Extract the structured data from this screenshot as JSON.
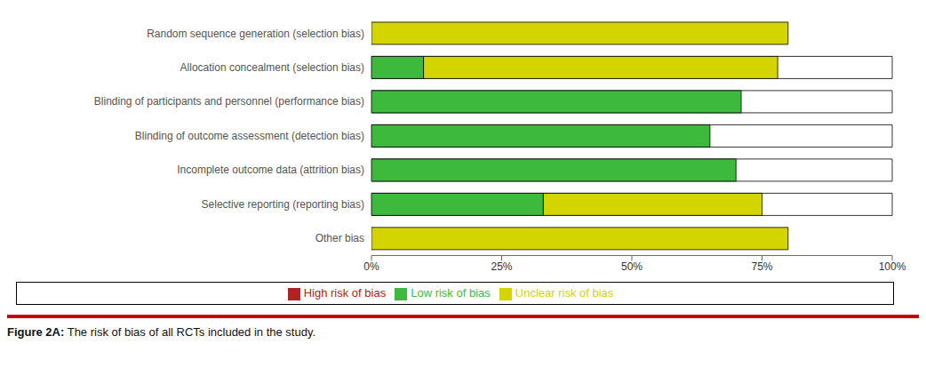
{
  "chart_data": {
    "type": "bar",
    "orientation": "horizontal",
    "stacked": true,
    "categories": [
      "Random sequence generation (selection bias)",
      "Allocation concealment (selection bias)",
      "Blinding of participants and personnel (performance bias)",
      "Blinding of outcome assessment (detection bias)",
      "Incomplete outcome data (attrition bias)",
      "Selective reporting (reporting bias)",
      "Other bias"
    ],
    "series": [
      {
        "name": "Low risk of bias",
        "color": "#3db93d",
        "values": [
          0,
          10,
          71,
          65,
          70,
          33,
          0
        ]
      },
      {
        "name": "Unclear risk of bias",
        "color": "#d4d400",
        "values": [
          80,
          68,
          0,
          0,
          0,
          42,
          80
        ]
      },
      {
        "name": "High risk of bias",
        "color": "#b22222",
        "values": [
          0,
          0,
          0,
          0,
          0,
          0,
          0
        ]
      }
    ],
    "xlim": [
      0,
      100
    ],
    "xticks": [
      {
        "value": 0,
        "label": "0%"
      },
      {
        "value": 25,
        "label": "25%"
      },
      {
        "value": 50,
        "label": "50%"
      },
      {
        "value": 75,
        "label": "75%"
      },
      {
        "value": 100,
        "label": "100%"
      }
    ],
    "grid": false,
    "legend": "bottom",
    "annotations": [
      "Figure 2A:",
      "The risk of bias of all RCTs included in the study."
    ]
  }
}
